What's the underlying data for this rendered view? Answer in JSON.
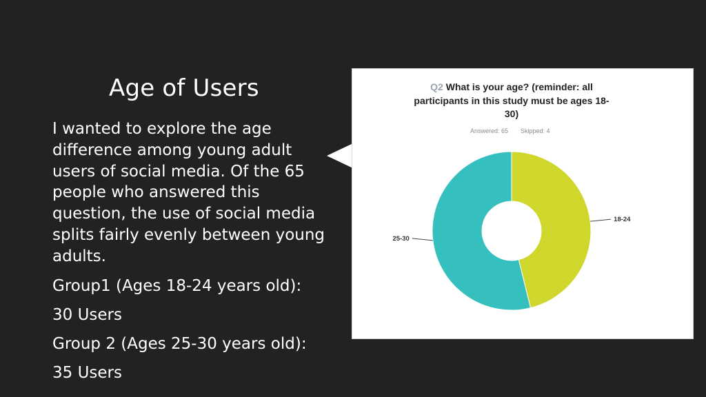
{
  "slide": {
    "title": "Age of Users",
    "intro": "I wanted to explore the age difference among young adult users of social media. Of the 65 people who answered this question, the use of social media splits fairly evenly between young adults.",
    "group1_label": "Group1 (Ages 18-24 years old):",
    "group1_value": "30 Users",
    "group2_label": "Group 2 (Ages 25-30 years old):",
    "group2_value": "35 Users"
  },
  "survey": {
    "question_number": "Q2",
    "question_line1": "What is your age? (reminder: all",
    "question_line2": "participants in this study must be ages 18-",
    "question_line3": "30)",
    "answered": "Answered: 65",
    "skipped": "Skipped: 4"
  },
  "chart_data": {
    "type": "pie",
    "donut": true,
    "title": "Q2 What is your age? (reminder: all participants in this study must be ages 18-30)",
    "categories": [
      "18-24",
      "25-30"
    ],
    "values": [
      30,
      35
    ],
    "colors": [
      "#cfd62c",
      "#36bfbf"
    ],
    "legend": "none",
    "labels_position": "outside-with-leader-lines"
  }
}
